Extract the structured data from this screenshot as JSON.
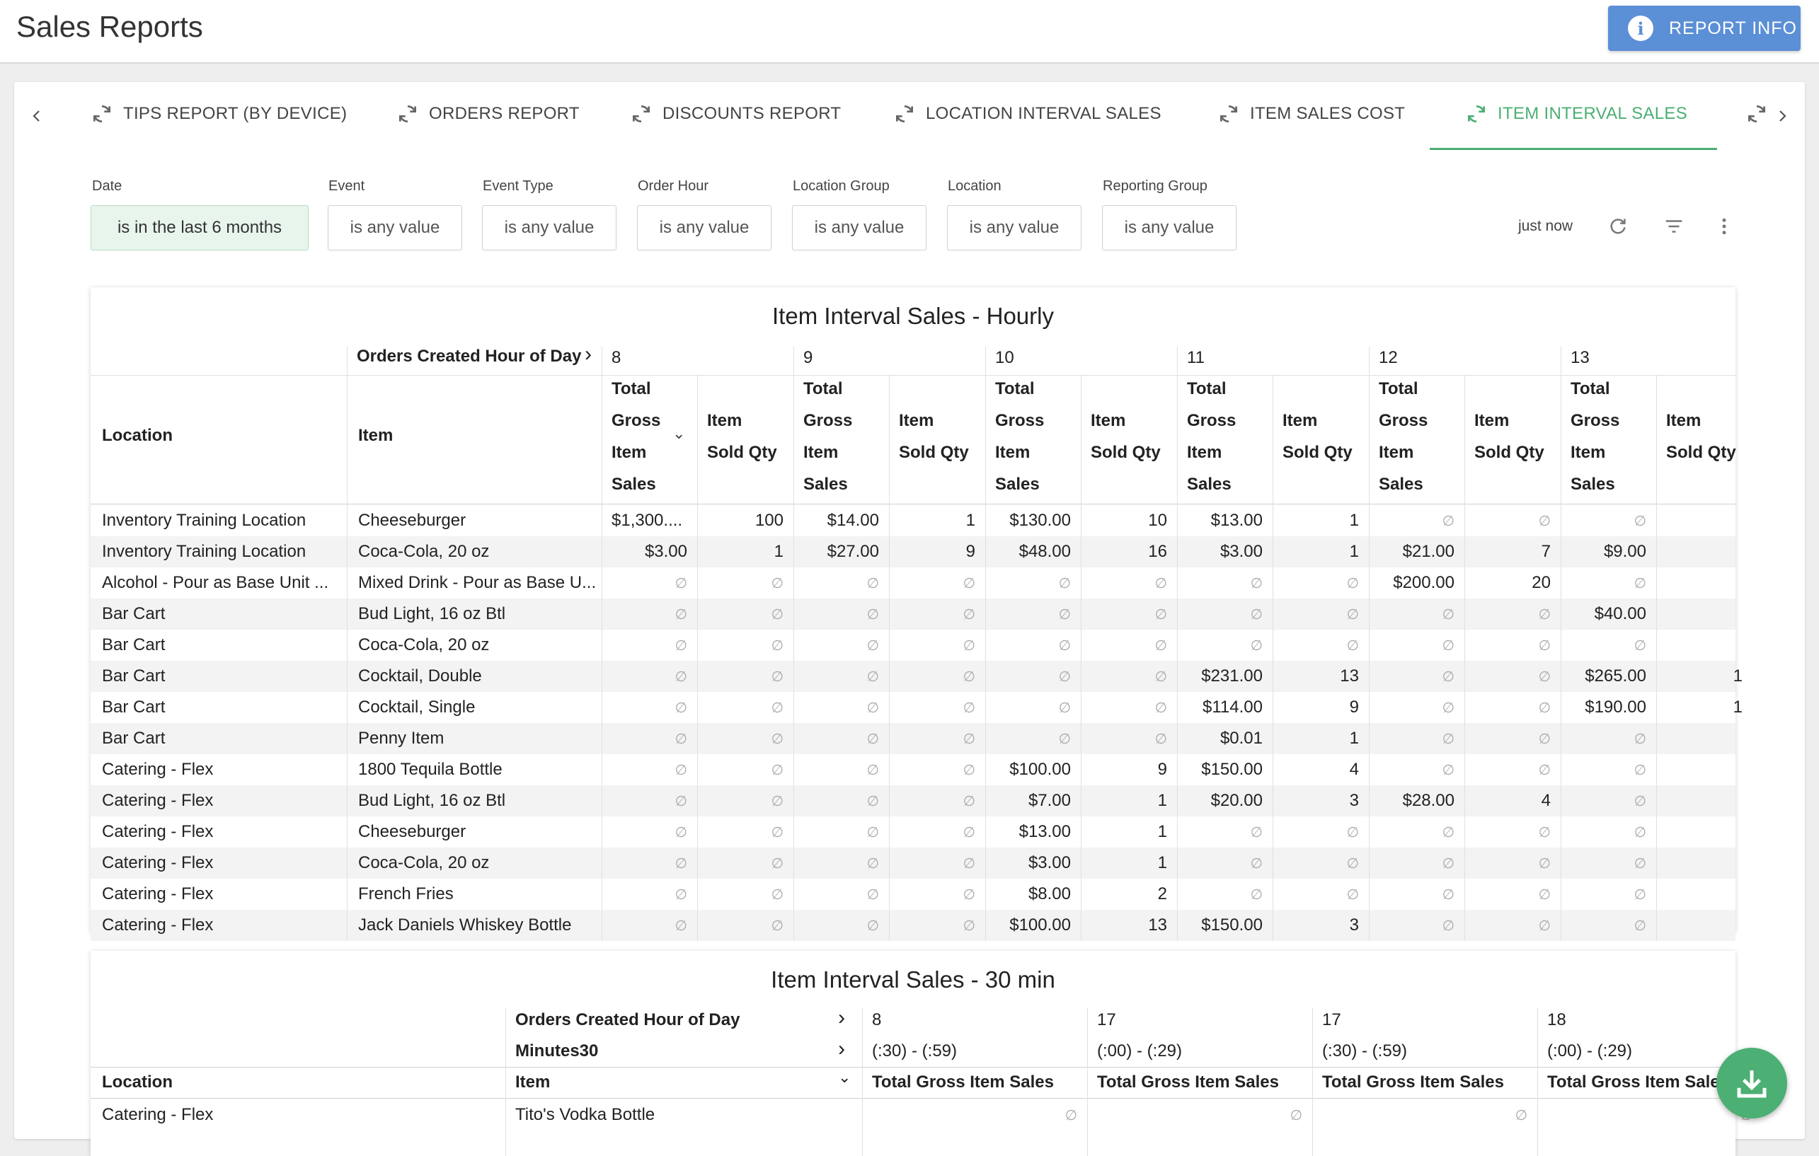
{
  "header": {
    "title": "Sales Reports",
    "report_info_label": "REPORT INFO"
  },
  "tabs": [
    {
      "label": "TIPS REPORT (BY DEVICE)"
    },
    {
      "label": "ORDERS REPORT"
    },
    {
      "label": "DISCOUNTS REPORT"
    },
    {
      "label": "LOCATION INTERVAL SALES"
    },
    {
      "label": "ITEM SALES COST"
    },
    {
      "label": "ITEM INTERVAL SALES"
    }
  ],
  "filters": [
    {
      "label": "Date",
      "value": "is in the last 6 months"
    },
    {
      "label": "Event",
      "value": "is any value"
    },
    {
      "label": "Event Type",
      "value": "is any value"
    },
    {
      "label": "Order Hour",
      "value": "is any value"
    },
    {
      "label": "Location Group",
      "value": "is any value"
    },
    {
      "label": "Location",
      "value": "is any value"
    },
    {
      "label": "Reporting Group",
      "value": "is any value"
    }
  ],
  "status": {
    "last_updated": "just now"
  },
  "hourly": {
    "title": "Item Interval Sales - Hourly",
    "pivot_label": "Orders Created Hour of Day",
    "location_header": "Location",
    "item_header": "Item",
    "hours": [
      "8",
      "9",
      "10",
      "11",
      "12",
      "13"
    ],
    "sales_header_lines": [
      "Total",
      "Gross",
      "Item",
      "Sales"
    ],
    "qty_header_lines": [
      "Item",
      "Sold Qty"
    ],
    "null_symbol": "∅",
    "rows": [
      {
        "location": "Inventory Training Location",
        "item": "Cheeseburger",
        "vals": [
          "$1,300....",
          "100",
          "$14.00",
          "1",
          "$130.00",
          "10",
          "$13.00",
          "1",
          null,
          null,
          null,
          ""
        ]
      },
      {
        "location": "Inventory Training Location",
        "item": "Coca-Cola, 20 oz",
        "vals": [
          "$3.00",
          "1",
          "$27.00",
          "9",
          "$48.00",
          "16",
          "$3.00",
          "1",
          "$21.00",
          "7",
          "$9.00",
          ""
        ]
      },
      {
        "location": "Alcohol - Pour as Base Unit ...",
        "item": "Mixed Drink - Pour as Base U...",
        "vals": [
          null,
          null,
          null,
          null,
          null,
          null,
          null,
          null,
          "$200.00",
          "20",
          null,
          ""
        ]
      },
      {
        "location": "Bar Cart",
        "item": "Bud Light, 16 oz Btl",
        "vals": [
          null,
          null,
          null,
          null,
          null,
          null,
          null,
          null,
          null,
          null,
          "$40.00",
          ""
        ]
      },
      {
        "location": "Bar Cart",
        "item": "Coca-Cola, 20 oz",
        "vals": [
          null,
          null,
          null,
          null,
          null,
          null,
          null,
          null,
          null,
          null,
          null,
          ""
        ]
      },
      {
        "location": "Bar Cart",
        "item": "Cocktail, Double",
        "vals": [
          null,
          null,
          null,
          null,
          null,
          null,
          "$231.00",
          "13",
          null,
          null,
          "$265.00",
          "1"
        ]
      },
      {
        "location": "Bar Cart",
        "item": "Cocktail, Single",
        "vals": [
          null,
          null,
          null,
          null,
          null,
          null,
          "$114.00",
          "9",
          null,
          null,
          "$190.00",
          "1"
        ]
      },
      {
        "location": "Bar Cart",
        "item": "Penny Item",
        "vals": [
          null,
          null,
          null,
          null,
          null,
          null,
          "$0.01",
          "1",
          null,
          null,
          null,
          ""
        ]
      },
      {
        "location": "Catering - Flex",
        "item": "1800 Tequila Bottle",
        "vals": [
          null,
          null,
          null,
          null,
          "$100.00",
          "9",
          "$150.00",
          "4",
          null,
          null,
          null,
          ""
        ]
      },
      {
        "location": "Catering - Flex",
        "item": "Bud Light, 16 oz Btl",
        "vals": [
          null,
          null,
          null,
          null,
          "$7.00",
          "1",
          "$20.00",
          "3",
          "$28.00",
          "4",
          null,
          ""
        ]
      },
      {
        "location": "Catering - Flex",
        "item": "Cheeseburger",
        "vals": [
          null,
          null,
          null,
          null,
          "$13.00",
          "1",
          null,
          null,
          null,
          null,
          null,
          ""
        ]
      },
      {
        "location": "Catering - Flex",
        "item": "Coca-Cola, 20 oz",
        "vals": [
          null,
          null,
          null,
          null,
          "$3.00",
          "1",
          null,
          null,
          null,
          null,
          null,
          ""
        ]
      },
      {
        "location": "Catering - Flex",
        "item": "French Fries",
        "vals": [
          null,
          null,
          null,
          null,
          "$8.00",
          "2",
          null,
          null,
          null,
          null,
          null,
          ""
        ]
      },
      {
        "location": "Catering - Flex",
        "item": "Jack Daniels Whiskey Bottle",
        "vals": [
          null,
          null,
          null,
          null,
          "$100.00",
          "13",
          "$150.00",
          "3",
          null,
          null,
          null,
          ""
        ]
      }
    ]
  },
  "thirty": {
    "title": "Item Interval Sales - 30 min",
    "pivot_label": "Orders Created Hour of Day",
    "pivot_label2": "Minutes30",
    "location_header": "Location",
    "item_header": "Item",
    "cols": [
      {
        "hour": "8",
        "range": "(:30) - (:59)"
      },
      {
        "hour": "17",
        "range": "(:00) - (:29)"
      },
      {
        "hour": "17",
        "range": "(:30) - (:59)"
      },
      {
        "hour": "18",
        "range": "(:00) - (:29)"
      }
    ],
    "measure_header": "Total Gross Item Sales",
    "rows": [
      {
        "location": "Catering - Flex",
        "item": "Tito's Vodka Bottle"
      }
    ]
  },
  "colors": {
    "accent_green": "#4caf73",
    "button_blue": "#5b8fd6"
  }
}
